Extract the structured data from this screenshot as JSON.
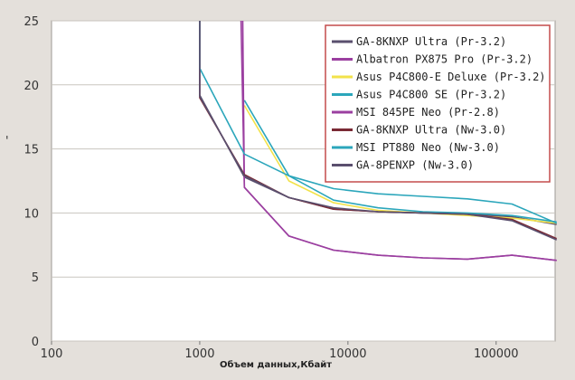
{
  "chart_data": {
    "type": "line",
    "title": "",
    "xlabel": "Объем данных,Кбайт",
    "ylabel": "",
    "x_scale": "log",
    "xlim": [
      100,
      250000
    ],
    "ylim": [
      0,
      25
    ],
    "x_ticks": [
      "100",
      "1000",
      "10000",
      "100000"
    ],
    "y_ticks": [
      "0",
      "5",
      "10",
      "15",
      "20",
      "25"
    ],
    "ylabel_mark": "'",
    "grid": "y-only",
    "legend_position": "top-right",
    "series": [
      {
        "name": "GA-8KNXP Ultra (Pr-3.2)",
        "color": "#5a4f6e",
        "x": [
          1000,
          1000,
          2000,
          4000,
          8000,
          16000,
          32000,
          64000,
          128000,
          256000
        ],
        "y": [
          25,
          19.2,
          12.8,
          11.2,
          10.3,
          10.1,
          10.0,
          9.9,
          9.7,
          9.1
        ]
      },
      {
        "name": "Albatron PX875 Pro (Pr-3.2)",
        "color": "#9b3fa0",
        "x": [
          1900,
          2000,
          4000,
          8000,
          16000,
          32000,
          64000,
          128000,
          256000
        ],
        "y": [
          25,
          12.0,
          8.2,
          7.1,
          6.7,
          6.5,
          6.4,
          6.7,
          6.3
        ]
      },
      {
        "name": "Asus P4C800-E Deluxe (Pr-3.2)",
        "color": "#f2e24a",
        "x": [
          2000,
          4000,
          8000,
          16000,
          32000,
          64000,
          128000,
          256000
        ],
        "y": [
          18.4,
          12.5,
          10.8,
          10.2,
          10.0,
          9.8,
          9.6,
          9.2
        ]
      },
      {
        "name": "Asus P4C800 SE (Pr-3.2)",
        "color": "#2ba6bb",
        "x": [
          2000,
          4000,
          8000,
          16000,
          32000,
          64000,
          128000,
          256000
        ],
        "y": [
          18.8,
          12.9,
          11.0,
          10.4,
          10.1,
          10.0,
          9.8,
          9.3
        ]
      },
      {
        "name": "MSI 845PE Neo (Pr-2.8)",
        "color": "#9b3fa0",
        "x": [
          1950,
          2000,
          4000,
          8000,
          16000,
          32000,
          64000,
          128000,
          256000
        ],
        "y": [
          25,
          12.0,
          8.2,
          7.1,
          6.7,
          6.5,
          6.4,
          6.7,
          6.3
        ]
      },
      {
        "name": "GA-8KNXP Ultra (Nw-3.0)",
        "color": "#7a2a35",
        "x": [
          1000,
          1000,
          2000,
          4000,
          8000,
          16000,
          32000,
          64000,
          128000,
          256000
        ],
        "y": [
          25,
          19.0,
          13.0,
          11.2,
          10.3,
          10.1,
          10.0,
          9.9,
          9.5,
          8.0
        ]
      },
      {
        "name": "MSI PT880 Neo (Nw-3.0)",
        "color": "#2ba6bb",
        "x": [
          1000,
          1000,
          2000,
          4000,
          8000,
          16000,
          32000,
          64000,
          128000,
          256000
        ],
        "y": [
          25,
          21.3,
          14.6,
          12.9,
          11.9,
          11.5,
          11.3,
          11.1,
          10.7,
          9.2
        ]
      },
      {
        "name": "GA-8PENXP (Nw-3.0)",
        "color": "#5a4f6e",
        "x": [
          1000,
          1000,
          2000,
          4000,
          8000,
          16000,
          32000,
          64000,
          128000,
          256000
        ],
        "y": [
          25,
          19.1,
          12.9,
          11.2,
          10.4,
          10.1,
          10.0,
          9.9,
          9.4,
          7.9
        ]
      }
    ]
  }
}
